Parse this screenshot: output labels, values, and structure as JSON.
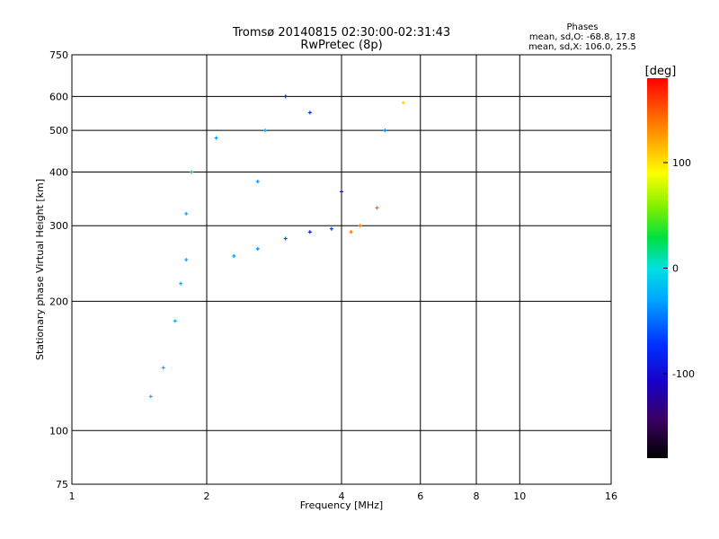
{
  "chart_data": {
    "type": "scatter",
    "title": "Tromsø 20140815 02:30:00-02:31:43",
    "subtitle": "RwPretec (8p)",
    "xlabel": "Frequency [MHz]",
    "ylabel": "Stationary phase Virtual Height [km]",
    "xscale": "log",
    "yscale": "log",
    "xlim": [
      1,
      16
    ],
    "ylim": [
      75,
      750
    ],
    "xticks": [
      1,
      2,
      4,
      6,
      8,
      10,
      16
    ],
    "yticks": [
      75,
      100,
      200,
      300,
      400,
      500,
      600,
      750
    ],
    "grid": true,
    "stats": {
      "heading": "Phases",
      "line_o": "mean, sd,O: -68.8, 17.8",
      "line_x": "mean, sd,X: 106.0, 25.5"
    },
    "colorbar": {
      "label": "[deg]",
      "min": -180,
      "max": 180,
      "ticks": [
        -100,
        0,
        100
      ],
      "colormap": [
        "#000000",
        "#3a0060",
        "#1800c8",
        "#0030ff",
        "#00a8ff",
        "#00e0e0",
        "#00e040",
        "#80f000",
        "#ffff00",
        "#ff9000",
        "#ff0000"
      ]
    },
    "series": [
      {
        "values": [
          {
            "x": 1.5,
            "y": 120,
            "phase": -20
          },
          {
            "x": 1.6,
            "y": 140,
            "phase": -25
          },
          {
            "x": 1.7,
            "y": 180,
            "phase": -25
          },
          {
            "x": 1.75,
            "y": 220,
            "phase": -20
          },
          {
            "x": 1.8,
            "y": 250,
            "phase": -30
          },
          {
            "x": 1.8,
            "y": 320,
            "phase": -30
          },
          {
            "x": 1.85,
            "y": 400,
            "phase": -25
          },
          {
            "x": 2.1,
            "y": 480,
            "phase": -30
          },
          {
            "x": 2.3,
            "y": 255,
            "phase": -35
          },
          {
            "x": 2.6,
            "y": 265,
            "phase": -40
          },
          {
            "x": 2.6,
            "y": 380,
            "phase": -35
          },
          {
            "x": 2.7,
            "y": 500,
            "phase": -30
          },
          {
            "x": 3.0,
            "y": 280,
            "phase": -60
          },
          {
            "x": 3.0,
            "y": 600,
            "phase": -85
          },
          {
            "x": 3.4,
            "y": 290,
            "phase": -90
          },
          {
            "x": 3.4,
            "y": 550,
            "phase": -70
          },
          {
            "x": 3.8,
            "y": 295,
            "phase": -70
          },
          {
            "x": 4.0,
            "y": 360,
            "phase": -90
          },
          {
            "x": 4.2,
            "y": 290,
            "phase": 140
          },
          {
            "x": 4.4,
            "y": 300,
            "phase": 135
          },
          {
            "x": 4.8,
            "y": 330,
            "phase": 145
          },
          {
            "x": 5.0,
            "y": 500,
            "phase": -40
          },
          {
            "x": 5.5,
            "y": 580,
            "phase": 105
          }
        ]
      }
    ]
  }
}
